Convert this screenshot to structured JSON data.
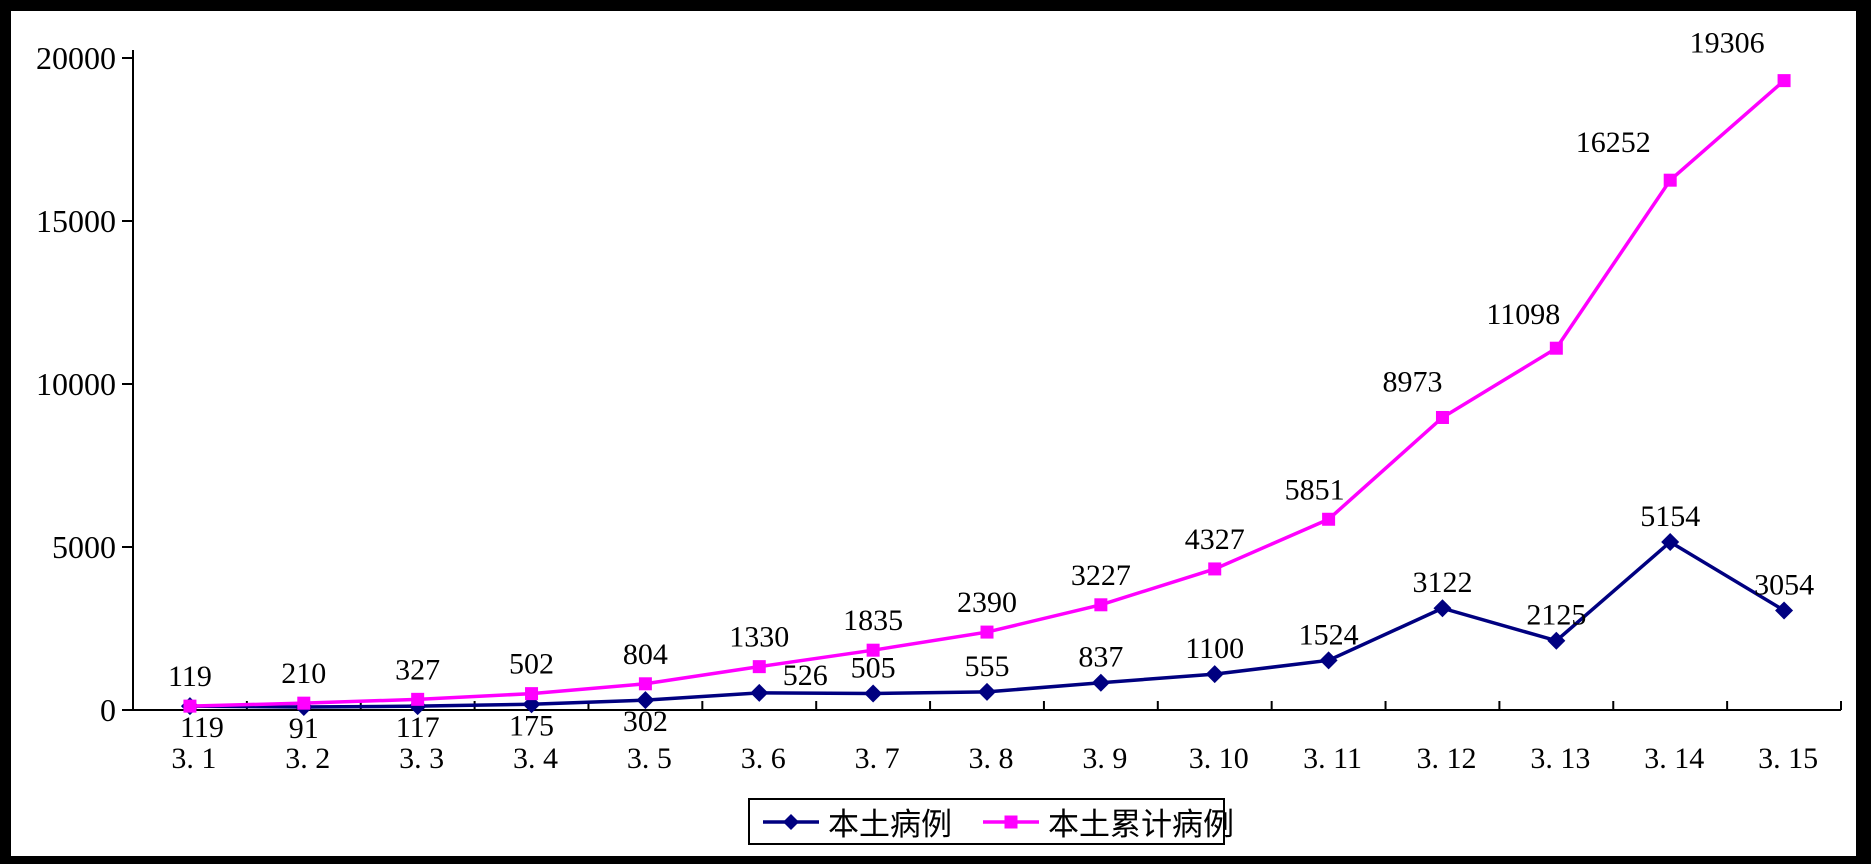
{
  "chart_data": {
    "type": "line",
    "title": "",
    "xlabel": "",
    "ylabel": "",
    "categories": [
      "3. 1",
      "3. 2",
      "3. 3",
      "3. 4",
      "3. 5",
      "3. 6",
      "3. 7",
      "3. 8",
      "3. 9",
      "3. 10",
      "3. 11",
      "3. 12",
      "3. 13",
      "3. 14",
      "3. 15"
    ],
    "series": [
      {
        "name": "本土病例",
        "color": "#000080",
        "marker": "diamond",
        "values": [
          119,
          91,
          117,
          175,
          302,
          526,
          505,
          555,
          837,
          1100,
          1524,
          3122,
          2125,
          5154,
          3054
        ]
      },
      {
        "name": "本土累计病例",
        "color": "#FF00FF",
        "marker": "square",
        "values": [
          119,
          210,
          327,
          502,
          804,
          1330,
          1835,
          2390,
          3227,
          4327,
          5851,
          8973,
          11098,
          16252,
          19306
        ]
      }
    ],
    "ylim": [
      0,
      20000
    ],
    "yticks": [
      0,
      5000,
      10000,
      15000,
      20000
    ],
    "grid": false,
    "data_labels": true,
    "legend_position": "bottom-center",
    "background": "#FFFFFF",
    "frame_color": "#000000",
    "axis_color": "#000000",
    "label_color": "#000000"
  }
}
